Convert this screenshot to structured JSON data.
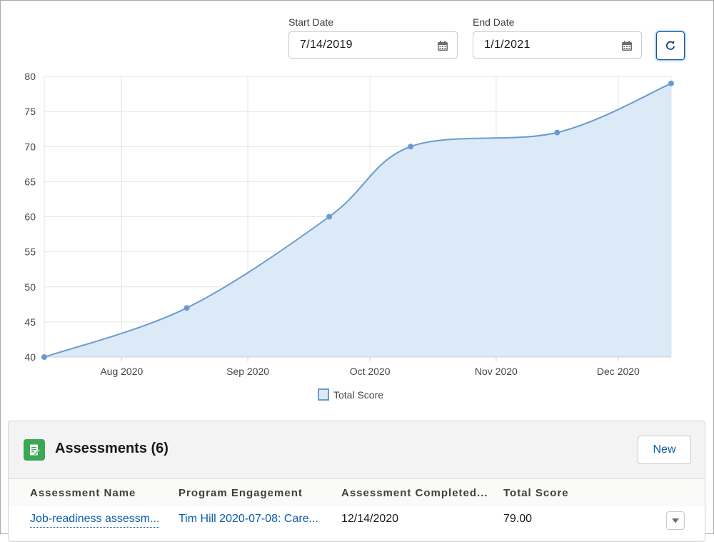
{
  "filters": {
    "start_label": "Start Date",
    "start_value": "7/14/2019",
    "end_label": "End Date",
    "end_value": "1/1/2021"
  },
  "chart_data": {
    "type": "area",
    "title": "",
    "xlabel": "",
    "ylabel": "",
    "ylim": [
      40,
      80
    ],
    "y_ticks": [
      "40",
      "45",
      "50",
      "55",
      "60",
      "65",
      "70",
      "75",
      "80"
    ],
    "x_ticks": [
      "Aug 2020",
      "Sep 2020",
      "Oct 2020",
      "Nov 2020",
      "Dec 2020"
    ],
    "x_tick_dates": [
      "2020-08-01",
      "2020-09-01",
      "2020-10-01",
      "2020-11-01",
      "2020-12-01"
    ],
    "x_range": [
      "2020-07-13",
      "2020-12-14"
    ],
    "legend": "bottom-center",
    "grid": true,
    "series": [
      {
        "name": "Total Score",
        "color": "#6a9bd0",
        "fill": "#dce9f6",
        "dates": [
          "2020-07-13",
          "2020-08-17",
          "2020-09-21",
          "2020-10-11",
          "2020-11-16",
          "2020-12-14"
        ],
        "values": [
          40,
          47,
          60,
          70,
          72,
          79
        ]
      }
    ]
  },
  "assessments": {
    "title": "Assessments (6)",
    "new_label": "New",
    "columns": [
      "Assessment Name",
      "Program Engagement",
      "Assessment Completed...",
      "Total Score"
    ],
    "rows": [
      {
        "name": "Job-readiness assessm...",
        "engagement": "Tim Hill 2020-07-08: Care...",
        "completed": "12/14/2020",
        "score": "79.00"
      }
    ]
  },
  "icons": {
    "calendar": "calendar-icon",
    "refresh": "refresh-icon",
    "assessment": "assessment-icon",
    "row_action": "chevron-down-icon"
  }
}
